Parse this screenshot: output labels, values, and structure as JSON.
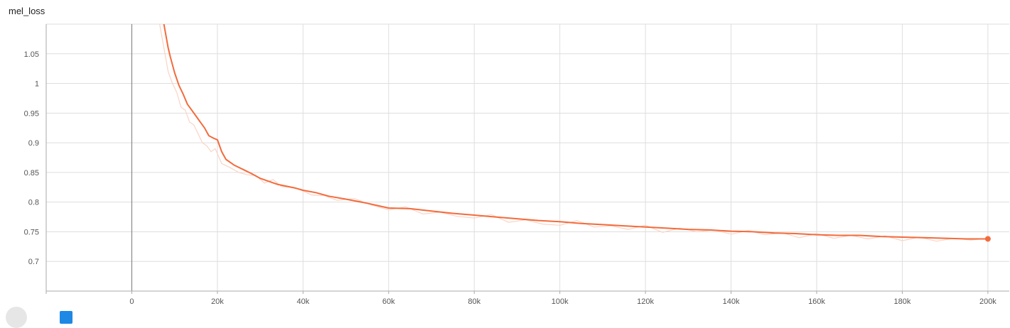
{
  "title": "mel_loss",
  "colors": {
    "smoothed": "#f36b3c",
    "raw": "#fbd3c4",
    "grid": "#dedede",
    "zero_line": "#888888",
    "tick_label": "#555555"
  },
  "chart_data": {
    "type": "line",
    "title": "mel_loss",
    "xlabel": "",
    "ylabel": "",
    "xlim": [
      -20000,
      205000
    ],
    "ylim": [
      0.65,
      1.1
    ],
    "x_ticks": [
      0,
      20000,
      40000,
      60000,
      80000,
      100000,
      120000,
      140000,
      160000,
      180000,
      200000
    ],
    "x_tick_labels": [
      "0",
      "20k",
      "40k",
      "60k",
      "80k",
      "100k",
      "120k",
      "140k",
      "160k",
      "180k",
      "200k"
    ],
    "y_ticks": [
      0.7,
      0.75,
      0.8,
      0.85,
      0.9,
      0.95,
      1.0,
      1.05
    ],
    "y_tick_labels": [
      "0.7",
      "0.75",
      "0.8",
      "0.85",
      "0.9",
      "0.95",
      "1",
      "1.05"
    ],
    "grid": true,
    "series": [
      {
        "role": "smoothed",
        "x": [
          7500,
          8000,
          8500,
          9000,
          10000,
          11000,
          12000,
          13000,
          14000,
          15000,
          16000,
          17000,
          18000,
          19000,
          20000,
          21000,
          22000,
          24000,
          26000,
          28000,
          30000,
          32000,
          34000,
          36000,
          38000,
          40000,
          43000,
          46000,
          50000,
          55000,
          60000,
          65000,
          70000,
          75000,
          80000,
          85000,
          90000,
          95000,
          100000,
          105000,
          110000,
          115000,
          120000,
          125000,
          130000,
          135000,
          140000,
          145000,
          150000,
          155000,
          160000,
          165000,
          170000,
          175000,
          180000,
          185000,
          190000,
          195000,
          200000
        ],
        "y": [
          1.1,
          1.08,
          1.06,
          1.045,
          1.018,
          0.997,
          0.982,
          0.965,
          0.955,
          0.945,
          0.935,
          0.925,
          0.912,
          0.908,
          0.905,
          0.885,
          0.872,
          0.862,
          0.855,
          0.848,
          0.84,
          0.835,
          0.83,
          0.827,
          0.824,
          0.82,
          0.816,
          0.81,
          0.805,
          0.798,
          0.79,
          0.789,
          0.785,
          0.781,
          0.778,
          0.775,
          0.772,
          0.769,
          0.767,
          0.764,
          0.762,
          0.76,
          0.758,
          0.756,
          0.754,
          0.753,
          0.751,
          0.75,
          0.748,
          0.747,
          0.745,
          0.744,
          0.744,
          0.742,
          0.741,
          0.74,
          0.739,
          0.738,
          0.738
        ]
      },
      {
        "role": "raw",
        "x": [
          6500,
          7500,
          8500,
          9500,
          10500,
          11500,
          12500,
          13500,
          14500,
          15500,
          16500,
          17500,
          18500,
          19500,
          21000,
          23000,
          25000,
          27000,
          29000,
          31000,
          33000,
          35000,
          37000,
          39000,
          42000,
          45000,
          48000,
          52000,
          56000,
          60000,
          64000,
          68000,
          72000,
          76000,
          80000,
          84000,
          88000,
          92000,
          96000,
          100000,
          104000,
          108000,
          112000,
          116000,
          120000,
          124000,
          128000,
          132000,
          136000,
          140000,
          144000,
          148000,
          152000,
          156000,
          160000,
          164000,
          168000,
          172000,
          176000,
          180000,
          184000,
          188000,
          192000,
          196000,
          200000
        ],
        "y": [
          1.1,
          1.06,
          1.02,
          1.0,
          0.985,
          0.96,
          0.955,
          0.935,
          0.93,
          0.915,
          0.9,
          0.895,
          0.885,
          0.89,
          0.865,
          0.858,
          0.85,
          0.846,
          0.845,
          0.832,
          0.838,
          0.826,
          0.825,
          0.822,
          0.812,
          0.811,
          0.803,
          0.806,
          0.795,
          0.787,
          0.792,
          0.78,
          0.783,
          0.776,
          0.773,
          0.779,
          0.766,
          0.77,
          0.763,
          0.761,
          0.769,
          0.758,
          0.76,
          0.754,
          0.761,
          0.749,
          0.756,
          0.75,
          0.753,
          0.746,
          0.752,
          0.745,
          0.748,
          0.74,
          0.747,
          0.739,
          0.744,
          0.738,
          0.743,
          0.735,
          0.741,
          0.734,
          0.739,
          0.736,
          0.739
        ]
      }
    ],
    "end_marker": {
      "x": 200000,
      "y": 0.738
    }
  }
}
